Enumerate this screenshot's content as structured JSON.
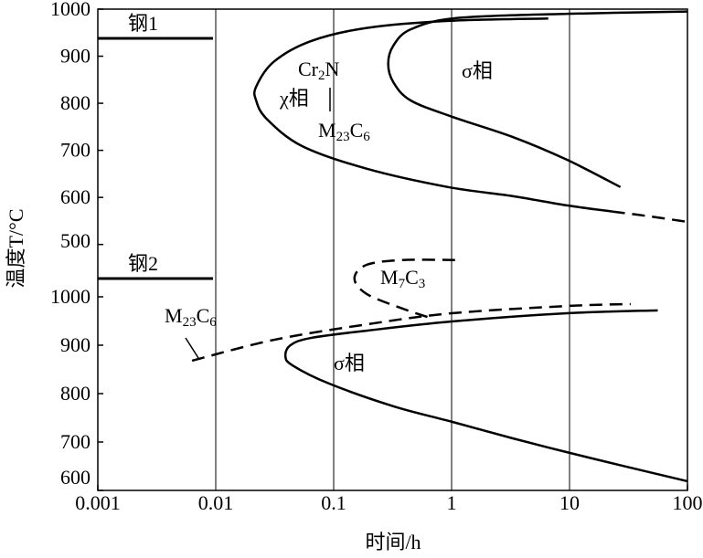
{
  "chart_data": [
    {
      "type": "line",
      "ylabel": "温度T/°C",
      "xlim": [
        0.001,
        100
      ],
      "xscale": "log",
      "ylim": [
        480,
        1000
      ],
      "yticks": [
        500,
        600,
        700,
        800,
        900,
        1000
      ],
      "annotations": [
        {
          "parts": [
            "钢1"
          ]
        },
        {
          "parts": [
            "Cr",
            "2",
            "N"
          ]
        },
        {
          "parts": [
            "χ相"
          ]
        },
        {
          "parts": [
            "M",
            "23",
            "C",
            "6"
          ]
        },
        {
          "parts": [
            "σ相"
          ]
        }
      ],
      "series": [
        {
          "style": "solid",
          "color": "#000000",
          "x": [
            6.6,
            0.93,
            0.19,
            0.064,
            0.031,
            0.022,
            0.022,
            0.027,
            0.054,
            0.19,
            0.93,
            3.25,
            9.5,
            23
          ],
          "values": [
            980,
            975,
            960,
            932,
            888,
            835,
            806,
            767,
            709,
            661,
            622,
            603,
            583,
            570
          ]
        },
        {
          "style": "dashed",
          "color": "#000000",
          "x": [
            23,
            47,
            100
          ],
          "values": [
            570,
            560,
            548
          ]
        },
        {
          "style": "solid",
          "color": "#000000",
          "x": [
            100,
            9.5,
            1.1,
            0.45,
            0.32,
            0.29,
            0.32,
            0.45,
            1.02,
            3.25,
            9.5,
            27
          ],
          "values": [
            995,
            990,
            981,
            957,
            922,
            884,
            845,
            806,
            771,
            729,
            680,
            622
          ]
        }
      ]
    },
    {
      "type": "line",
      "xlabel": "时间/h",
      "xlim": [
        0.001,
        100
      ],
      "xscale": "log",
      "xticks": [
        0.001,
        0.01,
        0.1,
        1,
        10,
        100
      ],
      "grid": true,
      "ylim": [
        600,
        1100
      ],
      "yticks": [
        600,
        700,
        800,
        900,
        1000
      ],
      "annotations": [
        {
          "parts": [
            "钢2"
          ]
        },
        {
          "parts": [
            "M",
            "7",
            "C",
            "3"
          ]
        },
        {
          "parts": [
            "M",
            "23",
            "C",
            "6"
          ]
        },
        {
          "parts": [
            "σ相"
          ]
        }
      ],
      "series": [
        {
          "style": "solid",
          "color": "#000000",
          "x": [
            56,
            9.5,
            1,
            0.19,
            0.064,
            0.043,
            0.039,
            0.045,
            0.091,
            0.32,
            1,
            3.25,
            9.5,
            28,
            100
          ],
          "values": [
            972,
            966,
            949,
            930,
            915,
            900,
            877,
            858,
            821,
            774,
            742,
            708,
            679,
            651,
            619
          ]
        },
        {
          "style": "dashed",
          "color": "#000000",
          "x": [
            0.0063,
            0.031,
            0.19,
            1,
            9.5,
            33
          ],
          "values": [
            868,
            911,
            943,
            966,
            981,
            985
          ]
        },
        {
          "style": "dashed",
          "color": "#000000",
          "x": [
            1.07,
            0.38,
            0.19,
            0.15,
            0.19,
            0.38,
            0.65
          ],
          "values": [
            1076,
            1076,
            1066,
            1038,
            1006,
            976,
            957
          ]
        }
      ]
    }
  ]
}
